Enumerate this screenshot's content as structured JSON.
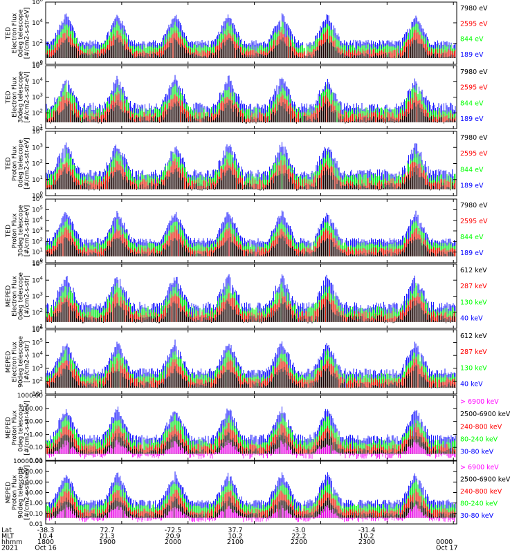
{
  "colors": {
    "blue": "#0000ff",
    "red": "#ff0000",
    "green": "#00ff00",
    "black": "#000000",
    "magenta": "#ff00ff"
  },
  "chart_data": {
    "type": "line",
    "x_axis": {
      "rows": [
        {
          "label": "Lat",
          "values": [
            "-38.3",
            "72.7",
            "-72.5",
            "37.7",
            "-3.0",
            "-31.4",
            ""
          ]
        },
        {
          "label": "MLT",
          "values": [
            "10.4",
            "21.3",
            "20.9",
            "10.2",
            "22.2",
            "10.2",
            ""
          ]
        },
        {
          "label": "hhmm",
          "values": [
            "1800",
            "1900",
            "2000",
            "2100",
            "2200",
            "2300",
            "0000"
          ]
        },
        {
          "label": "2021",
          "values": [
            "Oct 16",
            "",
            "",
            "",
            "",
            "",
            "Oct 17"
          ]
        }
      ]
    },
    "panels": [
      {
        "instrument": "TED",
        "ylabel": [
          "Electron Flux",
          "0deg telescope",
          "[#/cm2-s-str-eV]"
        ],
        "log_min": 0,
        "log_max": 6,
        "ticks": [
          {
            "e": 0,
            "label": "10"
          },
          {
            "e": 2,
            "label": "10"
          },
          {
            "e": 4,
            "label": "10"
          },
          {
            "e": 6,
            "label": "10"
          }
        ],
        "tick_style": "power",
        "legend": [
          {
            "text": "7980 eV",
            "color": "black"
          },
          {
            "text": "2595 eV",
            "color": "red"
          },
          {
            "text": "844 eV",
            "color": "green"
          },
          {
            "text": "189 eV",
            "color": "blue"
          }
        ]
      },
      {
        "instrument": "TED",
        "ylabel": [
          "Electron Flux",
          "30deg telescope",
          "[#/cm2-s-str-eV]"
        ],
        "log_min": 1,
        "log_max": 5,
        "ticks": [
          {
            "e": 1,
            "label": "10"
          },
          {
            "e": 2,
            "label": "10"
          },
          {
            "e": 3,
            "label": "10"
          },
          {
            "e": 4,
            "label": "10"
          },
          {
            "e": 5,
            "label": "10"
          }
        ],
        "tick_style": "power",
        "legend": [
          {
            "text": "7980 eV",
            "color": "black"
          },
          {
            "text": "2595 eV",
            "color": "red"
          },
          {
            "text": "844 eV",
            "color": "green"
          },
          {
            "text": "189 eV",
            "color": "blue"
          }
        ]
      },
      {
        "instrument": "TED",
        "ylabel": [
          "Proton Flux",
          "0deg telescope",
          "[#/cm2-s-str-eV]"
        ],
        "log_min": 0,
        "log_max": 4,
        "ticks": [
          {
            "e": 0,
            "label": "10"
          },
          {
            "e": 1,
            "label": "10"
          },
          {
            "e": 2,
            "label": "10"
          },
          {
            "e": 3,
            "label": "10"
          },
          {
            "e": 4,
            "label": "10"
          }
        ],
        "tick_style": "power",
        "legend": [
          {
            "text": "7980 eV",
            "color": "black"
          },
          {
            "text": "2595 eV",
            "color": "red"
          },
          {
            "text": "844 eV",
            "color": "green"
          },
          {
            "text": "189 eV",
            "color": "blue"
          }
        ]
      },
      {
        "instrument": "TED",
        "ylabel": [
          "Proton Flux",
          "30deg telescope",
          "[#/cm2-s-str-eV]"
        ],
        "log_min": 0,
        "log_max": 6,
        "ticks": [
          {
            "e": 0,
            "label": "10"
          },
          {
            "e": 1,
            "label": "10"
          },
          {
            "e": 2,
            "label": "10"
          },
          {
            "e": 3,
            "label": "10"
          },
          {
            "e": 4,
            "label": "10"
          },
          {
            "e": 5,
            "label": "10"
          },
          {
            "e": 6,
            "label": "10"
          }
        ],
        "tick_style": "power",
        "legend": [
          {
            "text": "7980 eV",
            "color": "black"
          },
          {
            "text": "2595 eV",
            "color": "red"
          },
          {
            "text": "844 eV",
            "color": "green"
          },
          {
            "text": "189 eV",
            "color": "blue"
          }
        ]
      },
      {
        "instrument": "MEPED",
        "ylabel": [
          "Electron Flux",
          "0deg telescope",
          "[#/cm2-s-str]"
        ],
        "log_min": 1,
        "log_max": 5,
        "ticks": [
          {
            "e": 1,
            "label": "10"
          },
          {
            "e": 2,
            "label": "10"
          },
          {
            "e": 3,
            "label": "10"
          },
          {
            "e": 4,
            "label": "10"
          },
          {
            "e": 5,
            "label": "10"
          }
        ],
        "tick_style": "power",
        "legend": [
          {
            "text": "612 keV",
            "color": "black"
          },
          {
            "text": "287 keV",
            "color": "red"
          },
          {
            "text": "130 keV",
            "color": "green"
          },
          {
            "text": "40 keV",
            "color": "blue"
          }
        ]
      },
      {
        "instrument": "MEPED",
        "ylabel": [
          "Electron Flux",
          "90deg telescope",
          "[#/cm2-s-str]"
        ],
        "log_min": 1,
        "log_max": 6,
        "ticks": [
          {
            "e": 1,
            "label": "10"
          },
          {
            "e": 2,
            "label": "10"
          },
          {
            "e": 3,
            "label": "10"
          },
          {
            "e": 4,
            "label": "10"
          },
          {
            "e": 5,
            "label": "10"
          },
          {
            "e": 6,
            "label": "10"
          }
        ],
        "tick_style": "power",
        "legend": [
          {
            "text": "612 keV",
            "color": "black"
          },
          {
            "text": "287 keV",
            "color": "red"
          },
          {
            "text": "130 keV",
            "color": "green"
          },
          {
            "text": "40 keV",
            "color": "blue"
          }
        ]
      },
      {
        "instrument": "MEPED",
        "ylabel": [
          "Proton Flux",
          "0deg telescope",
          "[#/cm2-s-str-keV]"
        ],
        "log_min": -2,
        "log_max": 3,
        "ticks": [
          {
            "e": -2,
            "label": "0.01"
          },
          {
            "e": -1,
            "label": "0.10"
          },
          {
            "e": 0,
            "label": "1.00"
          },
          {
            "e": 1,
            "label": "10.00"
          },
          {
            "e": 2,
            "label": "100.00"
          },
          {
            "e": 3,
            "label": "1000.00"
          }
        ],
        "tick_style": "decimal",
        "legend": [
          {
            "text": "> 6900 keV",
            "color": "magenta"
          },
          {
            "text": "2500-6900 keV",
            "color": "black"
          },
          {
            "text": "240-800 keV",
            "color": "red"
          },
          {
            "text": "80-240 keV",
            "color": "green"
          },
          {
            "text": "30-80 keV",
            "color": "blue"
          }
        ]
      },
      {
        "instrument": "MEPED",
        "ylabel": [
          "Proton Flux",
          "90deg telescope",
          "[#/cm2-s-str-keV]"
        ],
        "log_min": -2,
        "log_max": 4,
        "ticks": [
          {
            "e": -2,
            "label": "0.01"
          },
          {
            "e": -1,
            "label": "0.10"
          },
          {
            "e": 0,
            "label": "1.00"
          },
          {
            "e": 1,
            "label": "10.00"
          },
          {
            "e": 2,
            "label": "100.00"
          },
          {
            "e": 3,
            "label": "1000.00"
          },
          {
            "e": 4,
            "label": "10000.00"
          }
        ],
        "tick_style": "decimal",
        "legend": [
          {
            "text": "> 6900 keV",
            "color": "magenta"
          },
          {
            "text": "2500-6900 keV",
            "color": "black"
          },
          {
            "text": "240-800 keV",
            "color": "red"
          },
          {
            "text": "80-240 keV",
            "color": "green"
          },
          {
            "text": "30-80 keV",
            "color": "blue"
          }
        ]
      }
    ]
  }
}
